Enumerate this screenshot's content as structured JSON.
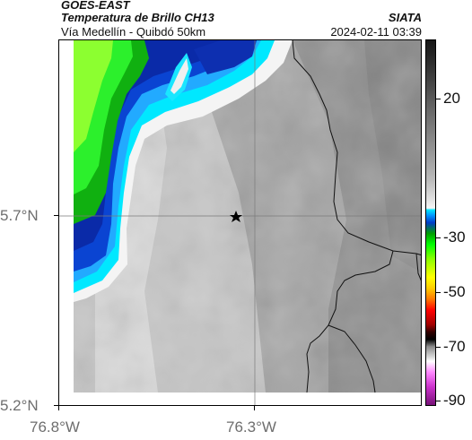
{
  "header": {
    "title": "GOES-EAST",
    "subtitle": "Temperatura de Brillo CH13",
    "location": "Vía Medellín - Quibdó 50km",
    "source": "SIATA",
    "datetime": "2024-02-11 03:39"
  },
  "axes": {
    "lat_labels": [
      "5.7°N",
      "5.2°N"
    ],
    "lon_labels": [
      "76.8°W",
      "76.3°W"
    ]
  },
  "colorbar": {
    "labels": [
      "20",
      "-30",
      "-50",
      "-70",
      "-90"
    ]
  },
  "marker": {
    "icon": "star-icon"
  }
}
